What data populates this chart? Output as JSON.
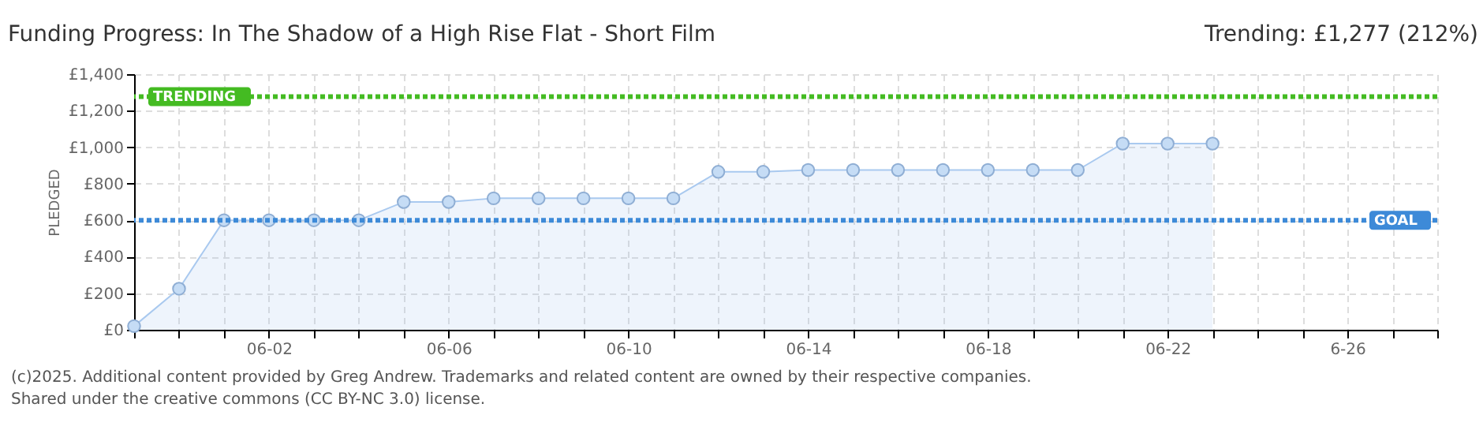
{
  "chart_data": {
    "type": "area",
    "title": "Funding Progress: In The Shadow of a High Rise Flat - Short Film",
    "subtitle": "Trending:  £1,277 (212%)",
    "ylabel": "PLEDGED",
    "x": [
      "2025-05-30",
      "2025-05-31",
      "2025-06-01",
      "2025-06-02",
      "2025-06-03",
      "2025-06-04",
      "2025-06-05",
      "2025-06-06",
      "2025-06-07",
      "2025-06-08",
      "2025-06-09",
      "2025-06-10",
      "2025-06-11",
      "2025-06-12",
      "2025-06-13",
      "2025-06-14",
      "2025-06-15",
      "2025-06-16",
      "2025-06-17",
      "2025-06-18",
      "2025-06-19",
      "2025-06-20",
      "2025-06-21",
      "2025-06-22",
      "2025-06-23"
    ],
    "series": [
      {
        "color": "#a9c9ef",
        "values": [
          20,
          225,
          600,
          600,
          600,
          600,
          700,
          700,
          720,
          720,
          720,
          720,
          720,
          865,
          865,
          875,
          875,
          875,
          875,
          875,
          875,
          875,
          1020,
          1020,
          1020
        ]
      }
    ],
    "xlim": [
      "2025-05-30",
      "2025-06-28"
    ],
    "xticks": [
      {
        "value": "2025-05-30",
        "label": null
      },
      {
        "value": "2025-05-31",
        "label": null
      },
      {
        "value": "2025-06-01",
        "label": null
      },
      {
        "value": "2025-06-02",
        "label": "06-02"
      },
      {
        "value": "2025-06-03",
        "label": null
      },
      {
        "value": "2025-06-04",
        "label": null
      },
      {
        "value": "2025-06-05",
        "label": null
      },
      {
        "value": "2025-06-06",
        "label": "06-06"
      },
      {
        "value": "2025-06-07",
        "label": null
      },
      {
        "value": "2025-06-08",
        "label": null
      },
      {
        "value": "2025-06-09",
        "label": null
      },
      {
        "value": "2025-06-10",
        "label": "06-10"
      },
      {
        "value": "2025-06-11",
        "label": null
      },
      {
        "value": "2025-06-12",
        "label": null
      },
      {
        "value": "2025-06-13",
        "label": null
      },
      {
        "value": "2025-06-14",
        "label": "06-14"
      },
      {
        "value": "2025-06-15",
        "label": null
      },
      {
        "value": "2025-06-16",
        "label": null
      },
      {
        "value": "2025-06-17",
        "label": null
      },
      {
        "value": "2025-06-18",
        "label": "06-18"
      },
      {
        "value": "2025-06-19",
        "label": null
      },
      {
        "value": "2025-06-20",
        "label": null
      },
      {
        "value": "2025-06-21",
        "label": null
      },
      {
        "value": "2025-06-22",
        "label": "06-22"
      },
      {
        "value": "2025-06-23",
        "label": null
      },
      {
        "value": "2025-06-24",
        "label": null
      },
      {
        "value": "2025-06-25",
        "label": null
      },
      {
        "value": "2025-06-26",
        "label": "6-26"
      },
      {
        "value": "2025-06-27",
        "label": null
      },
      {
        "value": "2025-06-28",
        "label": null
      }
    ],
    "ylim": [
      0,
      1400
    ],
    "yticks": [
      {
        "value": 0,
        "label": "£0"
      },
      {
        "value": 200,
        "label": "£200"
      },
      {
        "value": 400,
        "label": "£400"
      },
      {
        "value": 600,
        "label": "£600"
      },
      {
        "value": 800,
        "label": "£800"
      },
      {
        "value": 1000,
        "label": "£1,000"
      },
      {
        "value": 1200,
        "label": "£1,200"
      },
      {
        "value": 1400,
        "label": "£1,400"
      }
    ],
    "ref_lines": [
      {
        "axis": "y",
        "value": 1277,
        "label": "TRENDING",
        "color": "#44bb22",
        "line_style": "dotted"
      },
      {
        "axis": "y",
        "value": 600,
        "label": "GOAL",
        "color": "#3d8ad8",
        "line_style": "dotted"
      }
    ],
    "grid": true,
    "marker": "circle",
    "annotations": [
      "(c)2025. Additional content provided by Greg Andrew. Trademarks and related content are owned by their respective companies.",
      "Shared under the creative commons (CC BY-NC 3.0) license."
    ]
  }
}
